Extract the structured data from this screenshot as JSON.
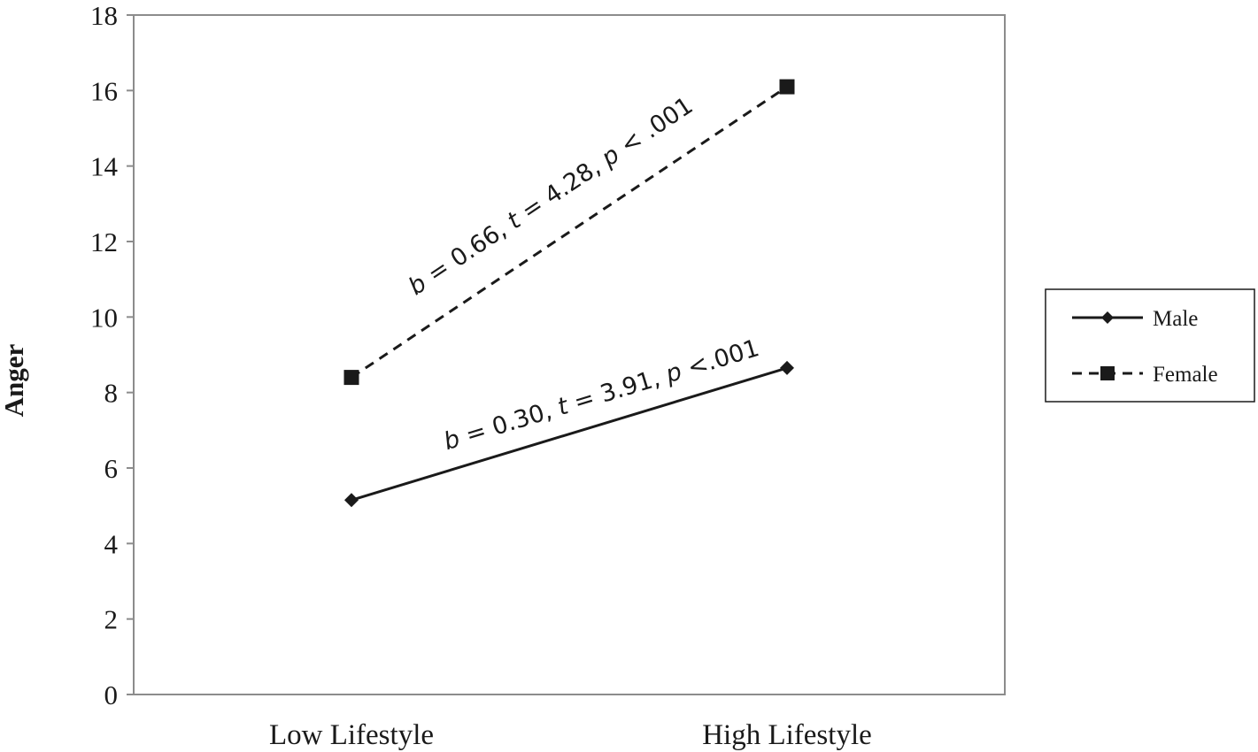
{
  "chart_data": {
    "type": "line",
    "categories": [
      "Low Lifestyle",
      "High Lifestyle"
    ],
    "ylabel": "Anger",
    "xlabel": "",
    "ylim": [
      0,
      18
    ],
    "yticks": [
      0,
      2,
      4,
      6,
      8,
      10,
      12,
      14,
      16,
      18
    ],
    "grid": false,
    "legend_position": "right",
    "series": [
      {
        "name": "Male",
        "values": [
          5.15,
          8.65
        ],
        "line_style": "solid",
        "marker": "diamond",
        "color": "#1a1a1a",
        "annotation": {
          "parts": [
            {
              "text": "b",
              "italic": true
            },
            {
              "text": " = 0.30, ",
              "italic": false
            },
            {
              "text": "t",
              "italic": true
            },
            {
              "text": " = 3.91, ",
              "italic": false
            },
            {
              "text": "p",
              "italic": true
            },
            {
              "text": " <.001",
              "italic": false
            }
          ]
        }
      },
      {
        "name": "Female",
        "values": [
          8.4,
          16.1
        ],
        "line_style": "dashed",
        "marker": "square",
        "color": "#1a1a1a",
        "annotation": {
          "parts": [
            {
              "text": "b",
              "italic": true
            },
            {
              "text": " = 0.66, ",
              "italic": false
            },
            {
              "text": "t",
              "italic": true
            },
            {
              "text": "  = 4.28, ",
              "italic": false
            },
            {
              "text": "p",
              "italic": true
            },
            {
              "text": " < .001",
              "italic": false
            }
          ]
        }
      }
    ]
  }
}
